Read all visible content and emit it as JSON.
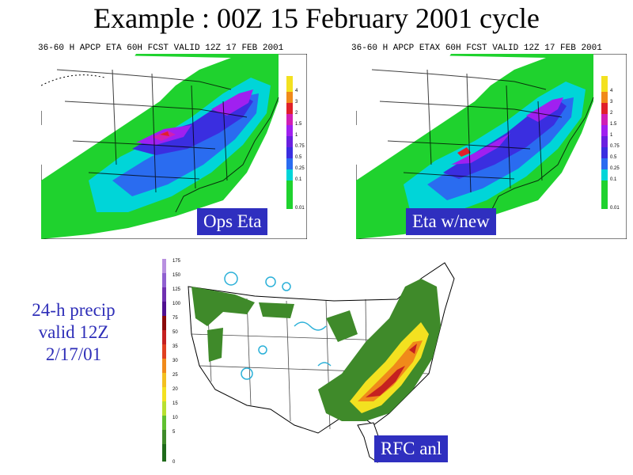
{
  "title": "Example : 00Z 15 February 2001 cycle",
  "panels": {
    "ops": {
      "header": "36-60 H APCP ETA 60H FCST VALID 12Z 17 FEB 2001",
      "label": "Ops Eta",
      "legend": [
        "4",
        "3",
        "2",
        "1.5",
        "1",
        "0.75",
        "0.5",
        "0.25",
        "0.1",
        "0.01"
      ]
    },
    "new": {
      "header": "36-60 H APCP ETAX 60H FCST VALID 12Z 17 FEB 2001",
      "label": "Eta w/new",
      "legend": [
        "4",
        "3",
        "2",
        "1.5",
        "1",
        "0.75",
        "0.5",
        "0.25",
        "0.1",
        "0.01"
      ]
    },
    "rfc": {
      "label": "RFC anl",
      "legend": [
        "175",
        "150",
        "125",
        "100",
        "75",
        "50",
        "35",
        "30",
        "25",
        "20",
        "15",
        "10",
        "5",
        "0"
      ]
    }
  },
  "side_note": {
    "line1": "24-h precip",
    "line2": "valid 12Z",
    "line3": "2/17/01"
  },
  "colors": {
    "green": "#1fd22e",
    "cyan": "#00d5d8",
    "blue": "#2a6cf0",
    "indigo": "#3a2ee0",
    "purple": "#a020f0",
    "magenta": "#d01fb4",
    "red": "#e0202a",
    "rfc_green": "#3f8a2a",
    "rfc_yellow": "#f3e120",
    "rfc_orange": "#f08a1a",
    "rfc_red": "#c52020"
  }
}
